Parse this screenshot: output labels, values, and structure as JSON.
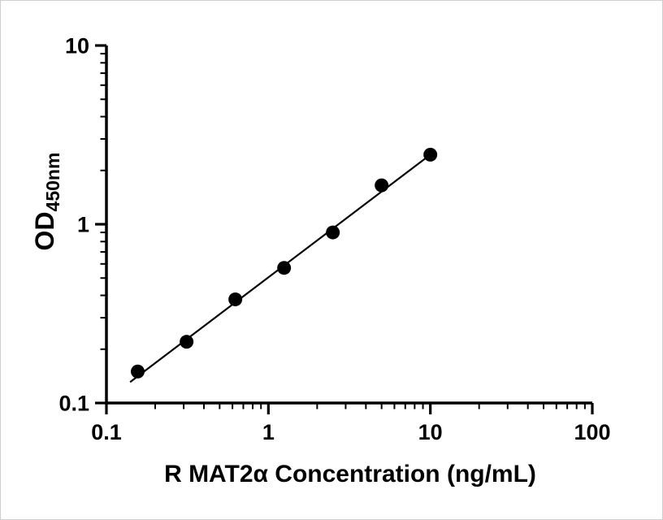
{
  "figure": {
    "background": "#ffffff",
    "axis_color": "#000000"
  },
  "chart_data": {
    "type": "scatter",
    "title": "",
    "xlabel": "R MAT2α Concentration (ng/mL)",
    "ylabel": "OD450nm",
    "ylabel_main": "OD",
    "ylabel_sub": "450nm",
    "x_scale": "log",
    "y_scale": "log",
    "xlim": [
      0.1,
      100
    ],
    "ylim": [
      0.1,
      10
    ],
    "grid": false,
    "legend_position": "none",
    "x_ticks": [
      {
        "value": 0.1,
        "label": "0.1"
      },
      {
        "value": 1,
        "label": "1"
      },
      {
        "value": 10,
        "label": "10"
      },
      {
        "value": 100,
        "label": "100"
      }
    ],
    "y_ticks": [
      {
        "value": 10,
        "label": "10"
      },
      {
        "value": 1,
        "label": "1"
      },
      {
        "value": 0.1,
        "label": "0.1"
      }
    ],
    "minor_ticks": true,
    "series": [
      {
        "marker": "filled-circle",
        "marker_color": "#000000",
        "marker_radius": 8.5,
        "points": [
          {
            "x": 0.156,
            "y": 0.15
          },
          {
            "x": 0.3125,
            "y": 0.22
          },
          {
            "x": 0.625,
            "y": 0.38
          },
          {
            "x": 1.25,
            "y": 0.57
          },
          {
            "x": 2.5,
            "y": 0.9
          },
          {
            "x": 5,
            "y": 1.65
          },
          {
            "x": 10,
            "y": 2.45
          }
        ]
      }
    ],
    "fit_line": {
      "color": "#000000",
      "width": 2.2,
      "x1": 0.14,
      "y1": 0.131,
      "x2": 10,
      "y2": 2.45
    }
  }
}
